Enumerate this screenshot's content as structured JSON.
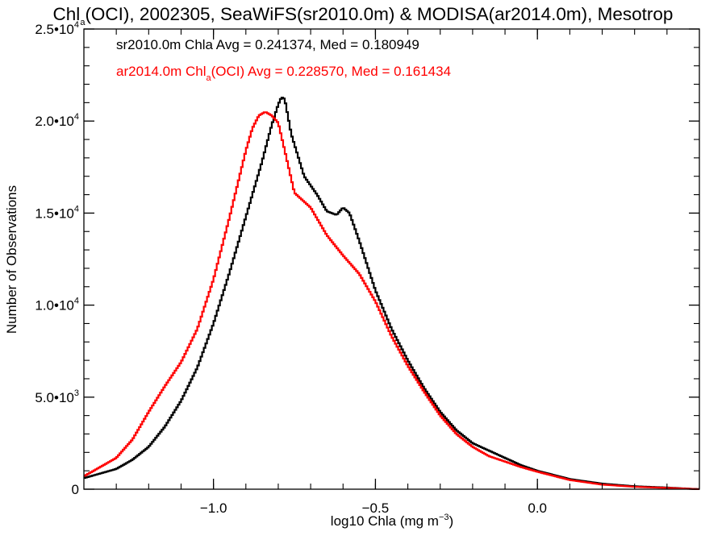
{
  "title": {
    "prefix": "Chl",
    "subscript": "a",
    "suffix": "(OCI), 2002305, SeaWiFS(sr2010.0m) & MODISA(ar2014.0m), Mesotrop"
  },
  "annotations": [
    {
      "parts": [
        {
          "text": "sr2010.0m Chla Avg = 0.241374, Med = 0.180949",
          "sub": false
        }
      ],
      "color": "#000000"
    },
    {
      "parts": [
        {
          "text": "ar2014.0m Chl",
          "sub": false
        },
        {
          "text": "a",
          "sub": true
        },
        {
          "text": "(OCI) Avg = 0.228570, Med = 0.161434",
          "sub": false
        }
      ],
      "color": "#ff0000"
    }
  ],
  "chart_data": {
    "type": "line",
    "step": true,
    "xlabel": {
      "text": "log10 Chla (mg m",
      "sup": "−3",
      "close": ")"
    },
    "ylabel": "Number of Observations",
    "xlim": [
      -1.4,
      0.5
    ],
    "ylim": [
      0,
      25000
    ],
    "xticks": [
      {
        "value": -1.0,
        "label": "−1.0"
      },
      {
        "value": -0.5,
        "label": "−0.5"
      },
      {
        "value": 0.0,
        "label": "0.0"
      }
    ],
    "xminor_step": 0.1,
    "yticks": [
      {
        "value": 0,
        "mant": "0",
        "exp": ""
      },
      {
        "value": 5000,
        "mant": "5.0•10",
        "exp": "3"
      },
      {
        "value": 10000,
        "mant": "1.0•10",
        "exp": "4"
      },
      {
        "value": 15000,
        "mant": "1.5•10",
        "exp": "4"
      },
      {
        "value": 20000,
        "mant": "2.0•10",
        "exp": "4"
      },
      {
        "value": 25000,
        "mant": "2.5•10",
        "exp": "4"
      }
    ],
    "yminor_step": 1000,
    "bin_width": 0.005,
    "grid": false,
    "series": [
      {
        "color": "#000000",
        "x": [
          -1.4,
          -1.3,
          -1.25,
          -1.2,
          -1.15,
          -1.1,
          -1.05,
          -1.0,
          -0.95,
          -0.9,
          -0.85,
          -0.82,
          -0.8,
          -0.79,
          -0.78,
          -0.76,
          -0.72,
          -0.68,
          -0.65,
          -0.62,
          -0.6,
          -0.58,
          -0.55,
          -0.5,
          -0.45,
          -0.4,
          -0.35,
          -0.3,
          -0.25,
          -0.2,
          -0.15,
          -0.1,
          -0.05,
          0.0,
          0.1,
          0.2,
          0.3,
          0.4,
          0.5
        ],
        "y": [
          600,
          1100,
          1600,
          2300,
          3400,
          4800,
          6600,
          9000,
          11800,
          14800,
          17800,
          19800,
          20900,
          21300,
          21200,
          19300,
          17000,
          16000,
          15100,
          14900,
          15300,
          15000,
          13500,
          10800,
          8700,
          7000,
          5500,
          4200,
          3200,
          2500,
          2100,
          1700,
          1300,
          1000,
          550,
          300,
          160,
          90,
          0
        ]
      },
      {
        "color": "#ff0000",
        "x": [
          -1.4,
          -1.3,
          -1.25,
          -1.2,
          -1.15,
          -1.1,
          -1.05,
          -1.0,
          -0.95,
          -0.9,
          -0.88,
          -0.86,
          -0.84,
          -0.82,
          -0.8,
          -0.78,
          -0.75,
          -0.7,
          -0.65,
          -0.6,
          -0.55,
          -0.5,
          -0.45,
          -0.4,
          -0.35,
          -0.3,
          -0.25,
          -0.2,
          -0.15,
          -0.1,
          -0.05,
          0.0,
          0.1,
          0.2,
          0.3,
          0.4,
          0.5
        ],
        "y": [
          700,
          1700,
          2700,
          4200,
          5600,
          6900,
          8700,
          11400,
          14800,
          18400,
          19600,
          20300,
          20500,
          20300,
          19900,
          18400,
          16100,
          15300,
          13800,
          12700,
          11700,
          10200,
          8300,
          6700,
          5300,
          4000,
          3000,
          2300,
          1800,
          1500,
          1200,
          950,
          500,
          250,
          130,
          70,
          0
        ]
      }
    ]
  }
}
